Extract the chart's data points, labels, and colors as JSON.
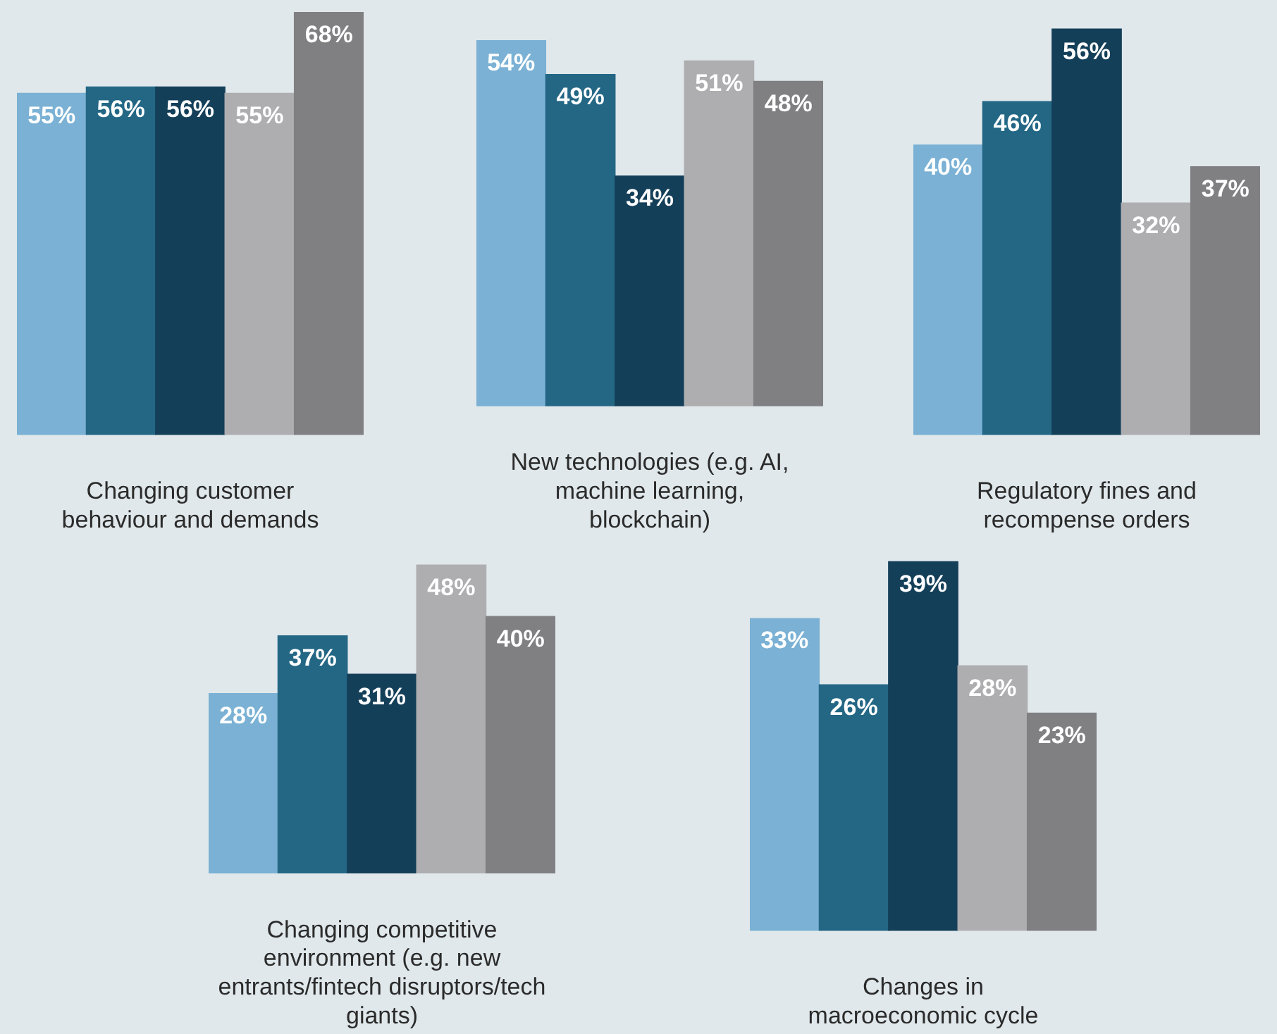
{
  "chart_data": [
    {
      "type": "bar",
      "xlabel": "Changing customer behaviour and demands",
      "categories": [
        null,
        null,
        null,
        null,
        null
      ],
      "colors": [
        "#7ab1d4",
        "#236785",
        "#143f59",
        "#aeaeb1",
        "#808083"
      ],
      "values": [
        55,
        56,
        56,
        55,
        68
      ],
      "value_labels": [
        "55%",
        "56%",
        "56%",
        "55%",
        "68%"
      ]
    },
    {
      "type": "bar",
      "xlabel": "New technologies (e.g. AI, machine learning, blockchain)",
      "categories": [
        null,
        null,
        null,
        null,
        null
      ],
      "colors": [
        "#7ab1d4",
        "#236785",
        "#143f59",
        "#aeaeb1",
        "#808083"
      ],
      "values": [
        54,
        49,
        34,
        51,
        48
      ],
      "value_labels": [
        "54%",
        "49%",
        "34%",
        "51%",
        "48%"
      ]
    },
    {
      "type": "bar",
      "xlabel": "Regulatory fines and recompense orders",
      "categories": [
        null,
        null,
        null,
        null,
        null
      ],
      "colors": [
        "#7ab1d4",
        "#236785",
        "#143f59",
        "#aeaeb1",
        "#808083"
      ],
      "values": [
        40,
        46,
        56,
        32,
        37
      ],
      "value_labels": [
        "40%",
        "46%",
        "56%",
        "32%",
        "37%"
      ]
    },
    {
      "type": "bar",
      "xlabel": "Changing competitive environment (e.g. new entrants/fintech disruptors/tech giants)",
      "categories": [
        null,
        null,
        null,
        null,
        null
      ],
      "colors": [
        "#7ab1d4",
        "#236785",
        "#143f59",
        "#aeaeb1",
        "#808083"
      ],
      "values": [
        28,
        37,
        31,
        48,
        40
      ],
      "value_labels": [
        "28%",
        "37%",
        "31%",
        "48%",
        "40%"
      ]
    },
    {
      "type": "bar",
      "xlabel": "Changes in macroeconomic cycle",
      "categories": [
        null,
        null,
        null,
        null,
        null
      ],
      "colors": [
        "#7ab1d4",
        "#236785",
        "#143f59",
        "#aeaeb1",
        "#808083"
      ],
      "values": [
        33,
        26,
        39,
        28,
        23
      ],
      "value_labels": [
        "33%",
        "26%",
        "39%",
        "28%",
        "23%"
      ]
    }
  ]
}
